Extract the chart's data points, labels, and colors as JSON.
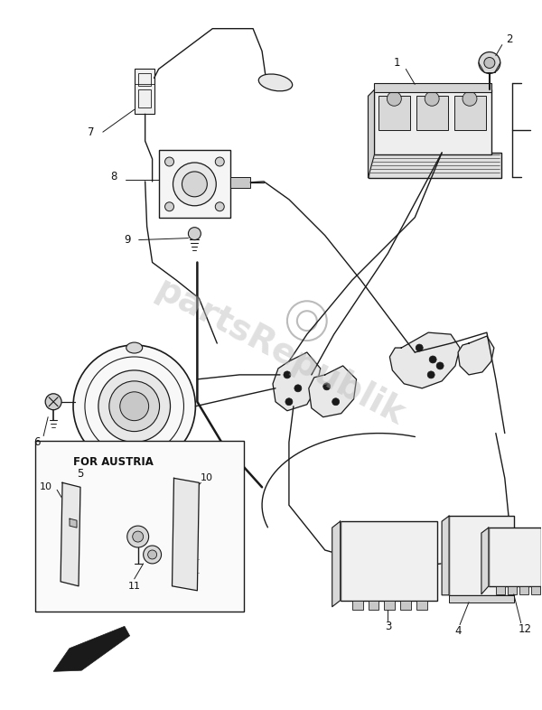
{
  "bg_color": "#ffffff",
  "line_color": "#1a1a1a",
  "watermark_text": "partsRepublik",
  "watermark_color": "#bbbbbb",
  "watermark_alpha": 0.45,
  "figsize": [
    6.0,
    7.86
  ],
  "dpi": 100
}
